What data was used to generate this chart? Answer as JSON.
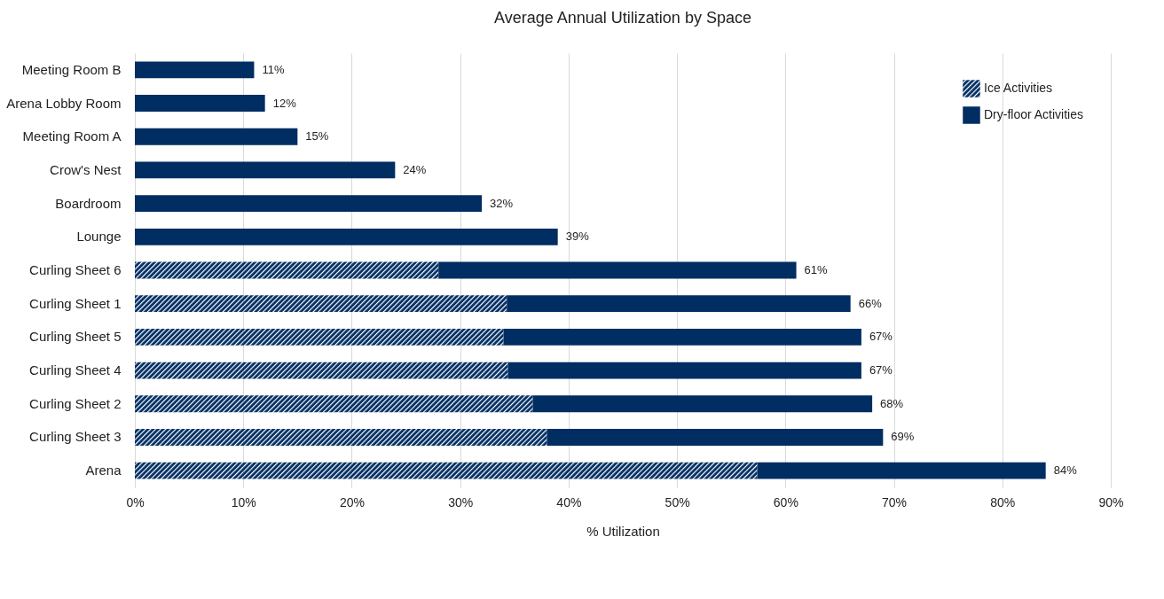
{
  "chart_data": {
    "type": "bar",
    "orientation": "horizontal",
    "stacked": true,
    "title": "Average Annual Utilization by Space",
    "xlabel": "% Utilization",
    "categories": [
      "Meeting Room B",
      "Arena Lobby Room",
      "Meeting Room A",
      "Crow's Nest",
      "Boardroom",
      "Lounge",
      "Curling Sheet 6",
      "Curling Sheet 1",
      "Curling Sheet 5",
      "Curling Sheet 4",
      "Curling Sheet 2",
      "Curling Sheet 3",
      "Arena"
    ],
    "series": [
      {
        "name": "Ice Activities",
        "color": "#002d62",
        "values": [
          null,
          null,
          null,
          null,
          null,
          null,
          28,
          34.3,
          34,
          34.4,
          36.7,
          38,
          57.4
        ]
      },
      {
        "name": "Dry-floor Activities",
        "color": "#002d62",
        "values": [
          11,
          12,
          15,
          24,
          32,
          39,
          33,
          31.7,
          33,
          32.6,
          31.3,
          31,
          26.6
        ]
      }
    ],
    "totals": [
      "11%",
      "12%",
      "15%",
      "24%",
      "32%",
      "39%",
      "61%",
      "66%",
      "67%",
      "67%",
      "68%",
      "69%",
      "84%"
    ],
    "xlim": [
      0,
      90
    ],
    "xticks": [
      {
        "value": 0,
        "label": "0%"
      },
      {
        "value": 10,
        "label": "10%"
      },
      {
        "value": 20,
        "label": "20%"
      },
      {
        "value": 30,
        "label": "30%"
      },
      {
        "value": 40,
        "label": "40%"
      },
      {
        "value": 50,
        "label": "50%"
      },
      {
        "value": 60,
        "label": "60%"
      },
      {
        "value": 70,
        "label": "70%"
      },
      {
        "value": 80,
        "label": "80%"
      },
      {
        "value": 90,
        "label": "90%"
      }
    ],
    "grid": "x",
    "legend": "top right"
  }
}
